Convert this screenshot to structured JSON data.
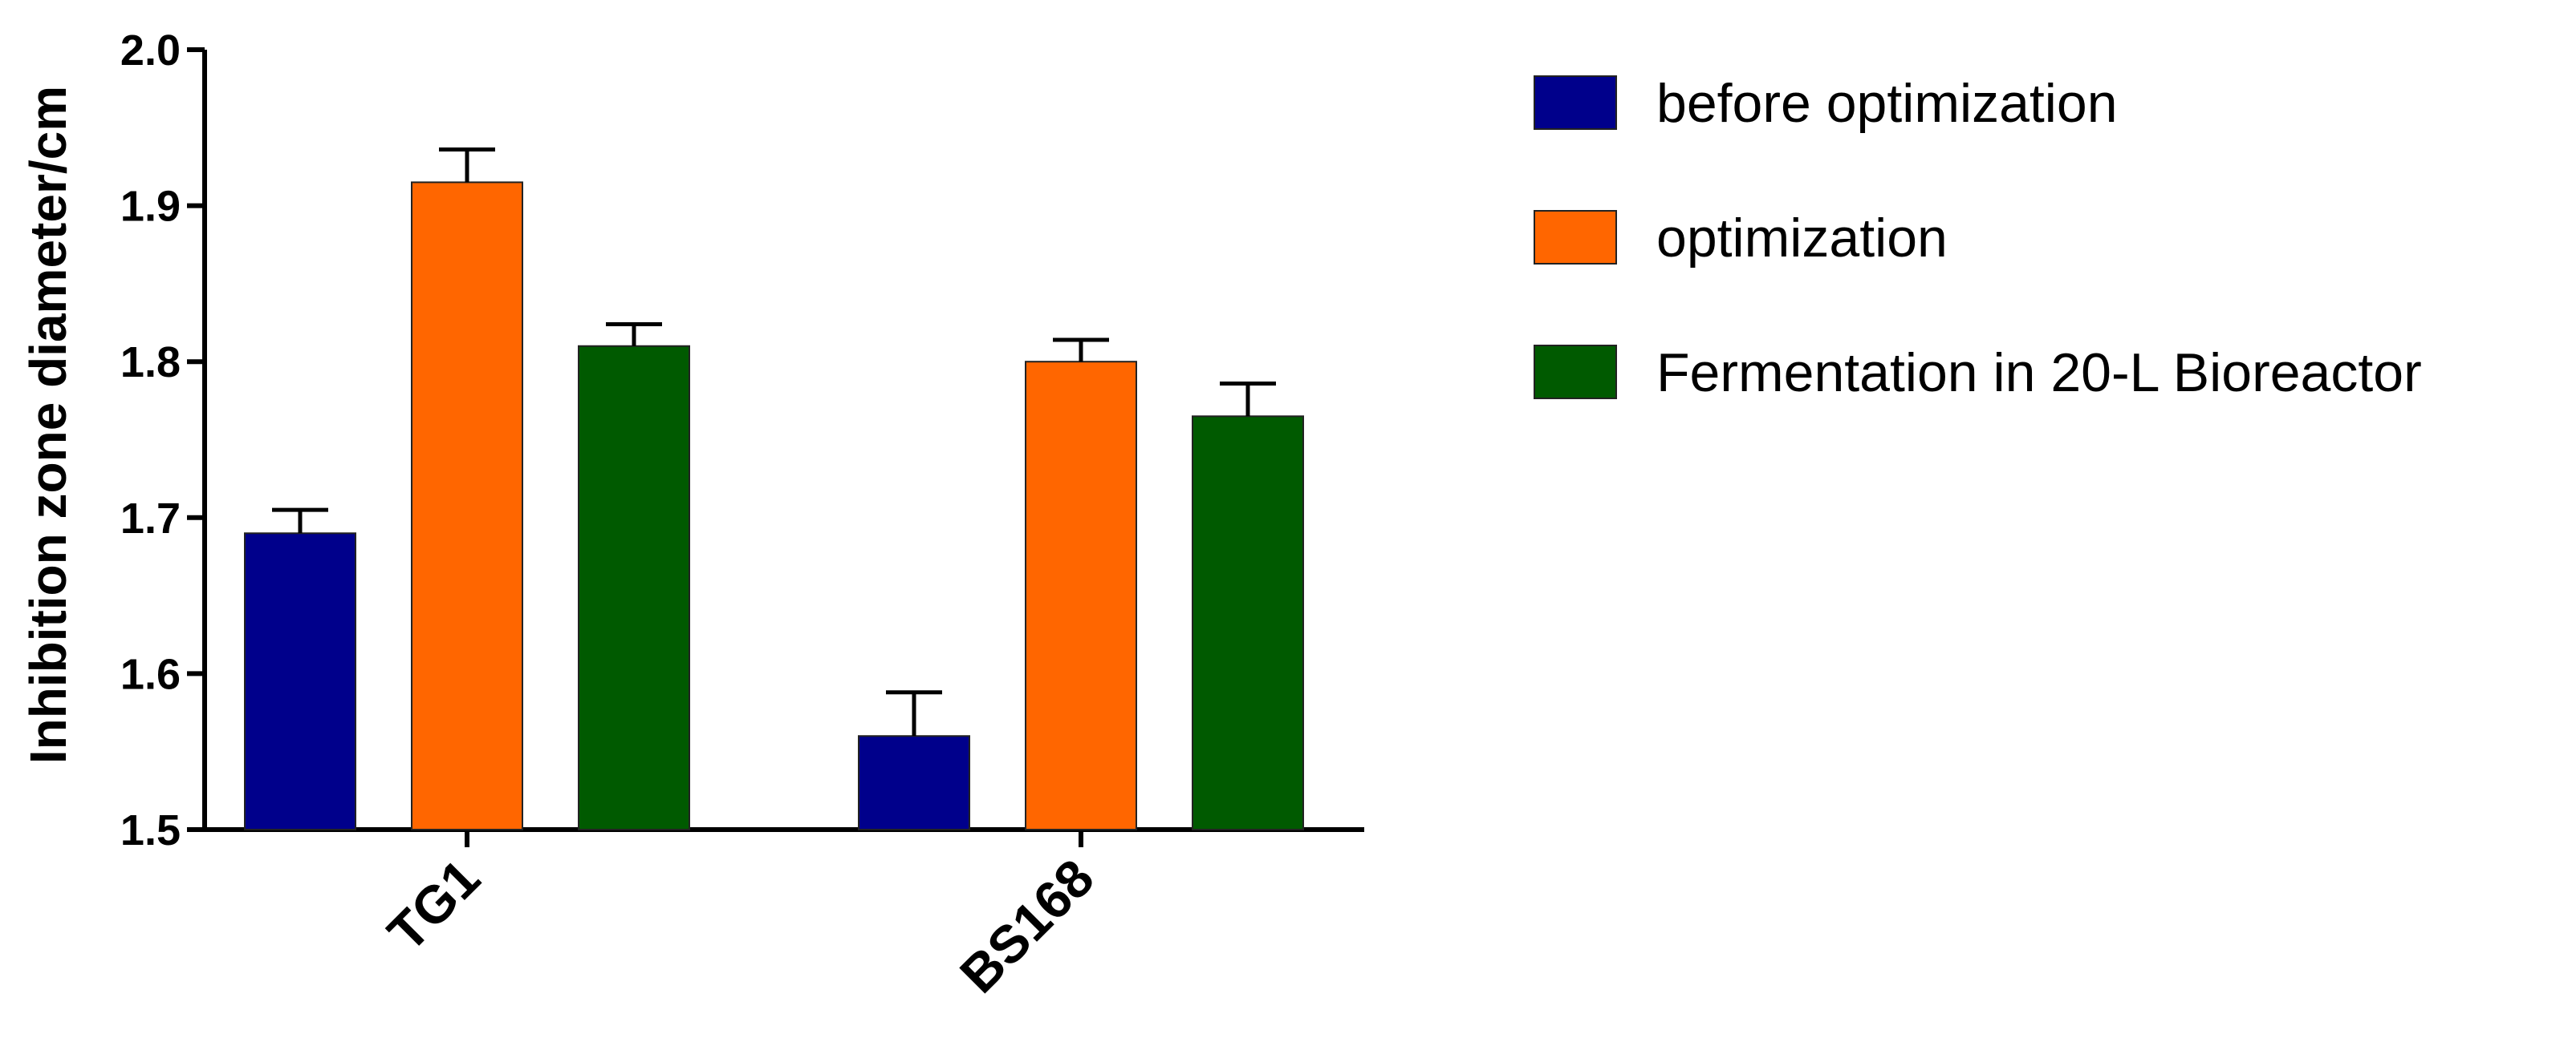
{
  "chart_data": {
    "type": "bar",
    "title": "",
    "xlabel": "",
    "ylabel": "Inhibition zone diameter/cm",
    "ylim": [
      1.5,
      2.0
    ],
    "yticks": [
      "1.5",
      "1.6",
      "1.7",
      "1.8",
      "1.9",
      "2.0"
    ],
    "categories": [
      "TG1",
      "BS168"
    ],
    "legend_position": "top-right",
    "grid": false,
    "series": [
      {
        "name": "before optimization",
        "color": "#00008B",
        "values": [
          1.69,
          1.56
        ],
        "errors": [
          0.015,
          0.028
        ]
      },
      {
        "name": "optimization",
        "color": "#FF6600",
        "values": [
          1.915,
          1.8
        ],
        "errors": [
          0.021,
          0.014
        ]
      },
      {
        "name": "Fermentation in 20-L Bioreactor",
        "color": "#005A00",
        "values": [
          1.81,
          1.765
        ],
        "errors": [
          0.014,
          0.021
        ]
      }
    ]
  }
}
